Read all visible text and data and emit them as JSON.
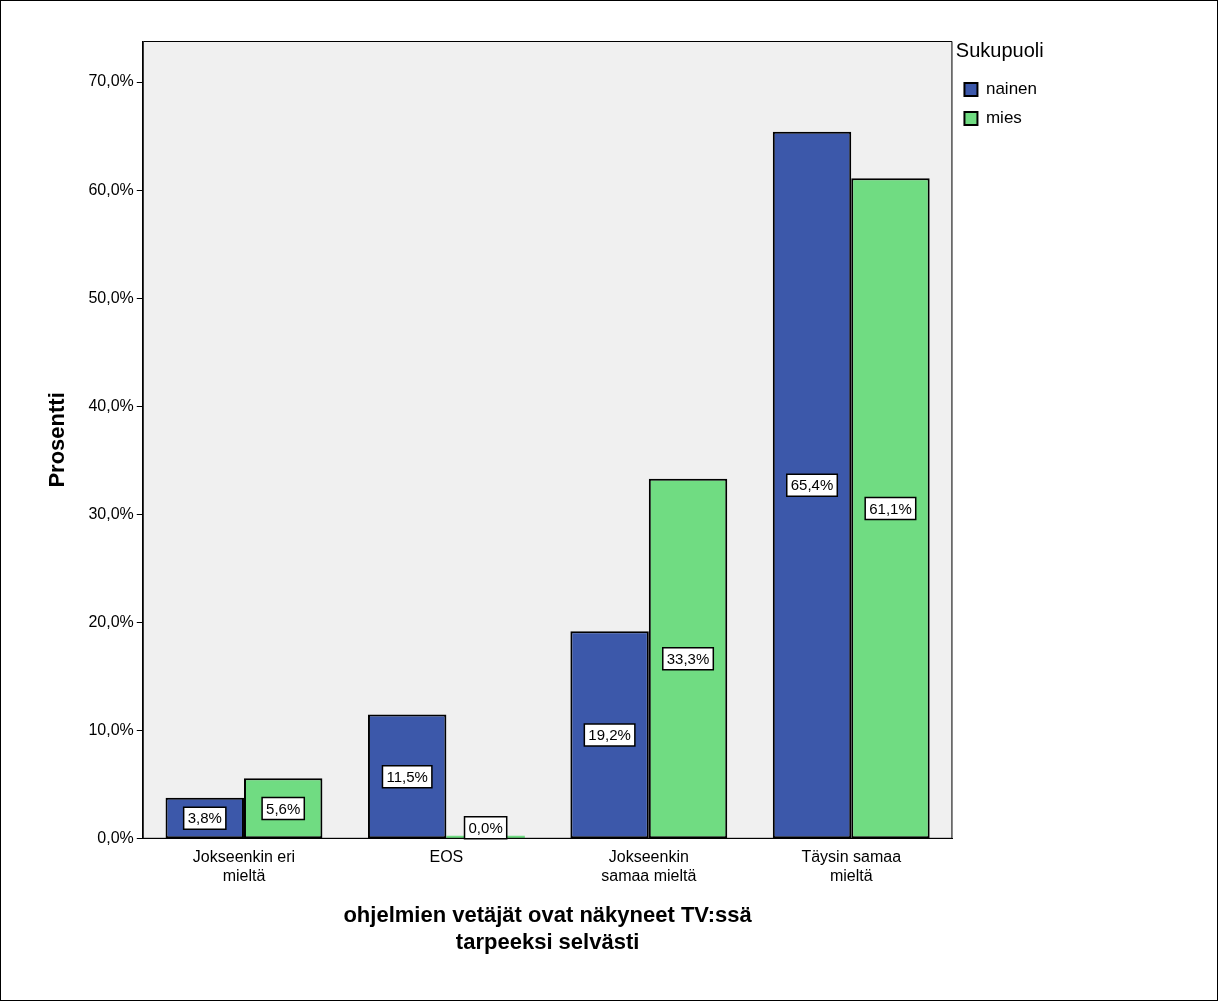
{
  "chart_data": {
    "type": "bar",
    "xlabel": "ohjelmien vetäjät ovat näkyneet TV:ssä tarpeeksi selvästi",
    "ylabel": "Prosentti",
    "legend_title": "Sukupuoli",
    "categories": [
      "Jokseenkin eri mieltä",
      "EOS",
      "Jokseenkin samaa mieltä",
      "Täysin samaa mieltä"
    ],
    "series": [
      {
        "name": "nainen",
        "color": "#3c58aa",
        "values": [
          3.8,
          11.5,
          19.2,
          65.4
        ],
        "value_labels": [
          "3,8%",
          "11,5%",
          "19,2%",
          "65,4%"
        ]
      },
      {
        "name": "mies",
        "color": "#70dc82",
        "values": [
          5.6,
          0.0,
          33.3,
          61.1
        ],
        "value_labels": [
          "5,6%",
          "0,0%",
          "33,3%",
          "61,1%"
        ]
      }
    ],
    "ylim": [
      0,
      73.8
    ],
    "yticks": [
      {
        "value": 0,
        "label": "0,0%"
      },
      {
        "value": 10,
        "label": "10,0%"
      },
      {
        "value": 20,
        "label": "20,0%"
      },
      {
        "value": 30,
        "label": "30,0%"
      },
      {
        "value": 40,
        "label": "40,0%"
      },
      {
        "value": 50,
        "label": "50,0%"
      },
      {
        "value": 60,
        "label": "60,0%"
      },
      {
        "value": 70,
        "label": "70,0%"
      }
    ],
    "grid": false,
    "legend": "top right"
  }
}
